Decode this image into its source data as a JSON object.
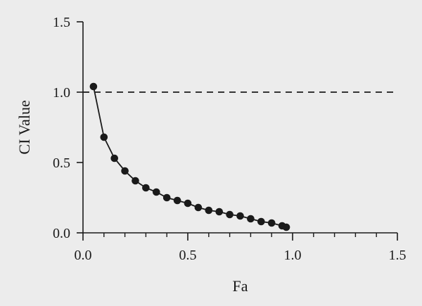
{
  "chart_data": {
    "type": "line",
    "title": "",
    "xlabel": "Fa",
    "ylabel": "CI Value",
    "xlim": [
      0,
      1.5
    ],
    "ylim": [
      0,
      1.5
    ],
    "x_ticks": [
      {
        "value": 0.0,
        "label": "0.0"
      },
      {
        "value": 0.5,
        "label": "0.5"
      },
      {
        "value": 1.0,
        "label": "1.0"
      },
      {
        "value": 1.5,
        "label": "1.5"
      }
    ],
    "y_ticks": [
      {
        "value": 0.0,
        "label": "0.0"
      },
      {
        "value": 0.5,
        "label": "0.5"
      },
      {
        "value": 1.0,
        "label": "1.0"
      },
      {
        "value": 1.5,
        "label": "1.5"
      }
    ],
    "x_minor_step": 0.1,
    "grid": false,
    "reference_line": {
      "y": 1.0,
      "style": "dashed"
    },
    "series": [
      {
        "color": "#1a1a1a",
        "marker": "circle",
        "x": [
          0.05,
          0.1,
          0.15,
          0.2,
          0.25,
          0.3,
          0.35,
          0.4,
          0.45,
          0.5,
          0.55,
          0.6,
          0.65,
          0.7,
          0.75,
          0.8,
          0.85,
          0.9,
          0.95,
          0.97
        ],
        "y": [
          1.04,
          0.68,
          0.53,
          0.44,
          0.37,
          0.32,
          0.29,
          0.25,
          0.23,
          0.21,
          0.18,
          0.16,
          0.15,
          0.13,
          0.12,
          0.1,
          0.08,
          0.07,
          0.05,
          0.04
        ]
      }
    ]
  }
}
